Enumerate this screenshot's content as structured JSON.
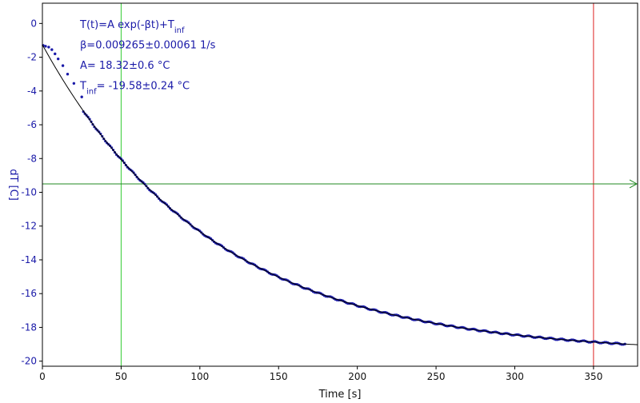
{
  "chart_data": {
    "type": "scatter",
    "xlabel": "Time [s]",
    "ylabel": "dT [C]",
    "xlim": [
      0,
      378
    ],
    "ylim": [
      -20.3,
      1.2
    ],
    "x_ticks": [
      0,
      50,
      100,
      150,
      200,
      250,
      300,
      350
    ],
    "y_ticks": [
      0,
      -2,
      -4,
      -6,
      -8,
      -10,
      -12,
      -14,
      -16,
      -18,
      -20
    ],
    "grid": false,
    "colors": {
      "data": "#1a1aa8",
      "fit": "#000000",
      "vline_left": "#33cc33",
      "vline_right": "#dd2222",
      "hline": "#228822",
      "frame": "#000000"
    },
    "fit": {
      "A": 18.32,
      "beta": 0.009265,
      "T_inf": -19.58
    },
    "data_x_range": [
      0,
      370
    ],
    "data_early_points": [
      [
        0.5,
        -1.3
      ],
      [
        2,
        -1.35
      ],
      [
        4,
        -1.4
      ],
      [
        6,
        -1.55
      ],
      [
        8,
        -1.8
      ],
      [
        10,
        -2.1
      ],
      [
        13,
        -2.5
      ],
      [
        16,
        -3.0
      ],
      [
        20,
        -3.55
      ],
      [
        25,
        -4.35
      ]
    ],
    "vlines": [
      50,
      350
    ],
    "hline": -9.5,
    "annotations": [
      {
        "id": "formula",
        "parts": [
          {
            "text": "T(t)=A exp(-βt)+T"
          },
          {
            "text": "inf",
            "sub": true
          }
        ]
      },
      {
        "id": "beta",
        "parts": [
          {
            "text": "β=0.009265±0.00061 1/s"
          }
        ]
      },
      {
        "id": "amplitude",
        "parts": [
          {
            "text": "A= 18.32±0.6 °C"
          }
        ]
      },
      {
        "id": "tinf",
        "parts": [
          {
            "text": "T"
          },
          {
            "text": "inf",
            "sub": true
          },
          {
            "text": "= -19.58±0.24 °C"
          }
        ]
      }
    ]
  }
}
